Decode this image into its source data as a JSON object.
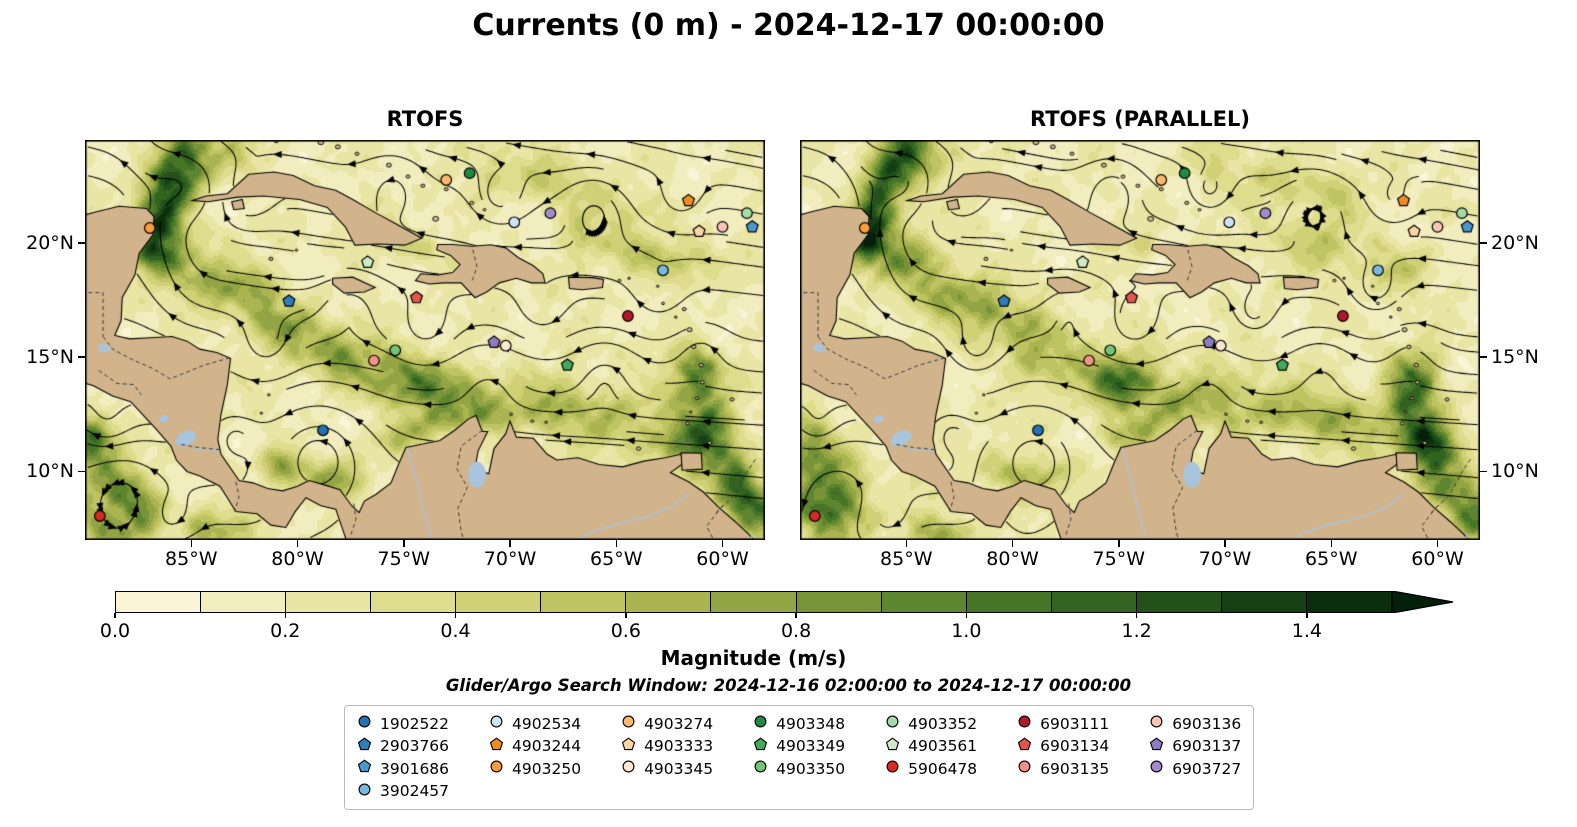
{
  "title": "Currents (0 m) - 2024-12-17 00:00:00",
  "subtitle": "Glider/Argo Search Window: 2024-12-16 02:00:00 to 2024-12-17 00:00:00",
  "panels": [
    {
      "title": "RTOFS"
    },
    {
      "title": "RTOFS (PARALLEL)"
    }
  ],
  "map": {
    "lon_ticks": [
      {
        "label": "85°W",
        "lon": -85
      },
      {
        "label": "80°W",
        "lon": -80
      },
      {
        "label": "75°W",
        "lon": -75
      },
      {
        "label": "70°W",
        "lon": -70
      },
      {
        "label": "65°W",
        "lon": -65
      },
      {
        "label": "60°W",
        "lon": -60
      }
    ],
    "lat_ticks": [
      {
        "label": "20°N",
        "lat": 20
      },
      {
        "label": "15°N",
        "lat": 15
      },
      {
        "label": "10°N",
        "lat": 10
      }
    ],
    "land_color": "#d2b48c",
    "water_feature_color": "#a9c5de"
  },
  "colorbar": {
    "label": "Magnitude (m/s)",
    "tick_labels": [
      "0.0",
      "0.2",
      "0.4",
      "0.6",
      "0.8",
      "1.0",
      "1.2",
      "1.4"
    ],
    "vmin": 0.0,
    "vmax": 1.5,
    "segment_colors": [
      "#faf5d7",
      "#f2edbe",
      "#e9e5a5",
      "#dedc8d",
      "#d0d177",
      "#bfc462",
      "#aab450",
      "#92a443",
      "#789438",
      "#5e852f",
      "#467527",
      "#326320",
      "#22511a",
      "#154013",
      "#0b2f0d"
    ],
    "over_color": "#05200a"
  },
  "legend": {
    "column_sizes": [
      4,
      3,
      3,
      3,
      3,
      3,
      3
    ]
  },
  "chart_data": {
    "type": "heatmap",
    "title": "Currents (0 m) - 2024-12-17 00:00:00",
    "subtitle": "Glider/Argo Search Window: 2024-12-16 02:00:00 to 2024-12-17 00:00:00",
    "panels": [
      "RTOFS",
      "RTOFS (PARALLEL)"
    ],
    "field": "sea-surface (0 m) current magnitude with streamlines, Caribbean Sea",
    "colorbar_label": "Magnitude (m/s)",
    "colorbar_ticks": [
      0.0,
      0.2,
      0.4,
      0.6,
      0.8,
      1.0,
      1.2,
      1.4
    ],
    "colorbar_range": [
      0.0,
      1.5
    ],
    "colorbar_extend": "max",
    "x_ticks": [
      "85°W",
      "80°W",
      "75°W",
      "70°W",
      "65°W",
      "60°W"
    ],
    "y_ticks": [
      "20°N",
      "15°N",
      "10°N"
    ],
    "extent": {
      "lon": [
        -90,
        -58
      ],
      "lat": [
        7,
        24.5
      ]
    },
    "legend_position": "bottom-center",
    "float_markers": [
      {
        "id": "1902522",
        "shape": "circle",
        "color": "#2171b5",
        "lon": -78.8,
        "lat": 11.8
      },
      {
        "id": "2903766",
        "shape": "pentagon",
        "color": "#2e7ebc",
        "lon": -80.4,
        "lat": 17.45
      },
      {
        "id": "3901686",
        "shape": "pentagon",
        "color": "#4a97cf",
        "lon": -58.6,
        "lat": 20.7
      },
      {
        "id": "3902457",
        "shape": "circle",
        "color": "#79b8e0",
        "lon": -62.8,
        "lat": 18.8
      },
      {
        "id": "4902534",
        "shape": "circle",
        "color": "#cfe4f2",
        "lon": -69.8,
        "lat": 20.9
      },
      {
        "id": "4903244",
        "shape": "pentagon",
        "color": "#f08c21",
        "lon": -61.6,
        "lat": 21.85
      },
      {
        "id": "4903250",
        "shape": "circle",
        "color": "#fa9e3d",
        "lon": -86.95,
        "lat": 20.65
      },
      {
        "id": "4903274",
        "shape": "circle",
        "color": "#fdb96a",
        "lon": -73.0,
        "lat": 22.75
      },
      {
        "id": "4903333",
        "shape": "pentagon",
        "color": "#fdd6a3",
        "lon": -61.1,
        "lat": 20.5
      },
      {
        "id": "4903345",
        "shape": "circle",
        "color": "#fde9d2",
        "lon": -70.2,
        "lat": 15.5
      },
      {
        "id": "4903348",
        "shape": "circle",
        "color": "#1e8b42",
        "lon": -71.9,
        "lat": 23.05
      },
      {
        "id": "4903349",
        "shape": "pentagon",
        "color": "#41ab5d",
        "lon": -67.3,
        "lat": 14.65
      },
      {
        "id": "4903350",
        "shape": "circle",
        "color": "#74c476",
        "lon": -75.4,
        "lat": 15.3
      },
      {
        "id": "4903352",
        "shape": "circle",
        "color": "#a5dba4",
        "lon": -58.85,
        "lat": 21.3
      },
      {
        "id": "4903561",
        "shape": "pentagon",
        "color": "#cdecc6",
        "lon": -76.7,
        "lat": 19.15
      },
      {
        "id": "5906478",
        "shape": "circle",
        "color": "#d62a23",
        "lon": -89.3,
        "lat": 8.05
      },
      {
        "id": "6903111",
        "shape": "circle",
        "color": "#b2182b",
        "lon": -64.45,
        "lat": 16.8
      },
      {
        "id": "6903134",
        "shape": "pentagon",
        "color": "#e4554e",
        "lon": -74.4,
        "lat": 17.6
      },
      {
        "id": "6903135",
        "shape": "circle",
        "color": "#f2928b",
        "lon": -76.4,
        "lat": 14.85
      },
      {
        "id": "6903136",
        "shape": "circle",
        "color": "#f9c4b6",
        "lon": -60.0,
        "lat": 20.7
      },
      {
        "id": "6903137",
        "shape": "pentagon",
        "color": "#8f7bc0",
        "lon": -70.75,
        "lat": 15.65
      },
      {
        "id": "6903727",
        "shape": "circle",
        "color": "#a28ccb",
        "lon": -68.1,
        "lat": 21.3
      }
    ]
  }
}
